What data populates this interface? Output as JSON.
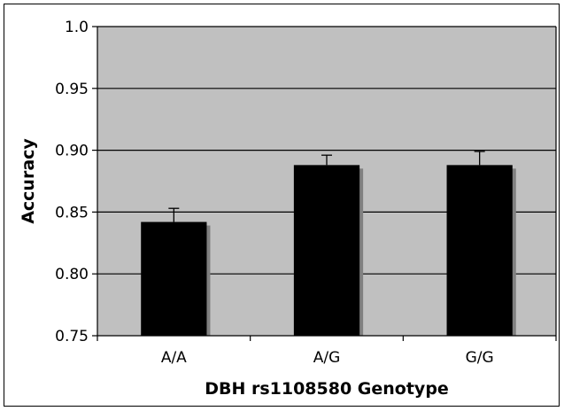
{
  "chart_data": {
    "type": "bar",
    "title": "",
    "xlabel": "DBH rs1108580 Genotype",
    "ylabel": "Accuracy",
    "categories": [
      "A/A",
      "A/G",
      "G/G"
    ],
    "values": [
      0.842,
      0.888,
      0.888
    ],
    "error_bars": [
      0.011,
      0.008,
      0.011
    ],
    "ylim": [
      0.75,
      1.0
    ],
    "yticks": [
      "0.75",
      "0.80",
      "0.85",
      "0.90",
      "0.95",
      "1.0"
    ],
    "grid": true,
    "legend": "none",
    "colors": {
      "plot_background": "#c0c0c0",
      "bar_fill": "#000000",
      "bar_shadow": "#808080",
      "gridline": "#000000"
    }
  }
}
